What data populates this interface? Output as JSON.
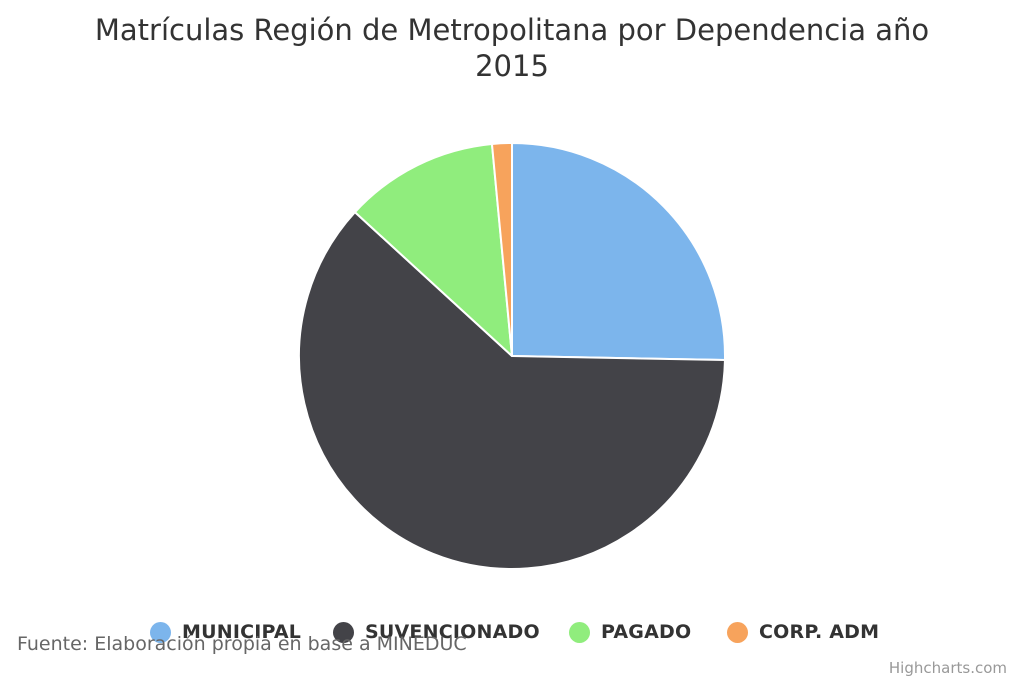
{
  "chart_data": {
    "type": "pie",
    "title_line1": "Matrículas Región de Metropolitana por Dependencia año",
    "title_line2": "2015",
    "series": [
      {
        "name": "MUNICIPAL",
        "value": 25.3,
        "color": "#7cb5ec"
      },
      {
        "name": "SUVENCIONADO",
        "value": 61.5,
        "color": "#434348"
      },
      {
        "name": "PAGADO",
        "value": 11.7,
        "color": "#90ed7d"
      },
      {
        "name": "CORP. ADM",
        "value": 1.5,
        "color": "#f7a35c"
      }
    ],
    "legend_position": "bottom"
  },
  "source_note": "Fuente: Elaboración propia en base a MINEDUC",
  "credits": "Highcharts.com"
}
